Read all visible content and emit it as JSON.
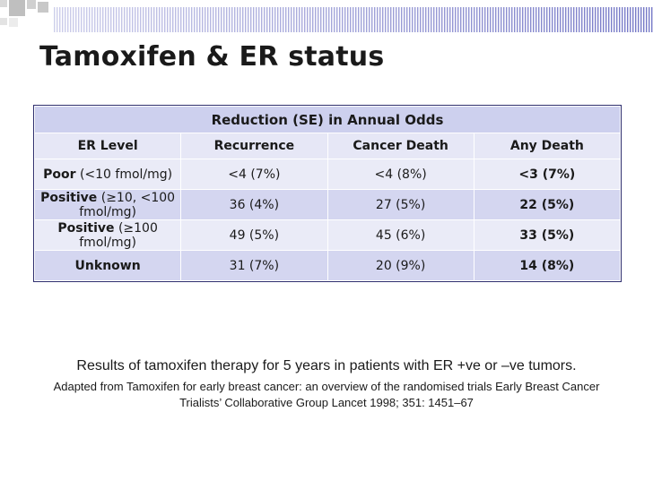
{
  "title": "Tamoxifen & ER status",
  "table": {
    "super_header": "Reduction (SE) in Annual Odds",
    "columns": [
      "ER Level",
      "Recurrence",
      "Cancer Death",
      "Any Death"
    ],
    "rows": [
      {
        "level_bold": "Poor",
        "level_rest": " (<10 fmol/mg)",
        "recurrence": "<4 (7%)",
        "cancer_death": "<4 (8%)",
        "any_death": "<3 (7%)"
      },
      {
        "level_bold": "Positive",
        "level_rest": " (≥10, <100 fmol/mg)",
        "recurrence": "36 (4%)",
        "cancer_death": "27 (5%)",
        "any_death": "22 (5%)"
      },
      {
        "level_bold": "Positive",
        "level_rest": " (≥100 fmol/mg)",
        "recurrence": "49 (5%)",
        "cancer_death": "45 (6%)",
        "any_death": "33 (5%)"
      },
      {
        "level_bold": "Unknown",
        "level_rest": "",
        "recurrence": "31 (7%)",
        "cancer_death": "20 (9%)",
        "any_death": "14 (8%)"
      }
    ]
  },
  "caption": {
    "line1": "Results of tamoxifen therapy for 5 years in patients with ER +ve or –ve tumors.",
    "line2": "Adapted from Tamoxifen for early breast cancer: an overview of the randomised trials Early Breast Cancer Trialists’ Collaborative Group Lancet 1998; 351: 1451–67"
  },
  "colors": {
    "header_dark": "#cdd0ee",
    "header_light": "#e6e7f6",
    "row_light": "#eaebf7",
    "row_dark": "#d4d6f0",
    "stripe": "#6f72c4"
  }
}
